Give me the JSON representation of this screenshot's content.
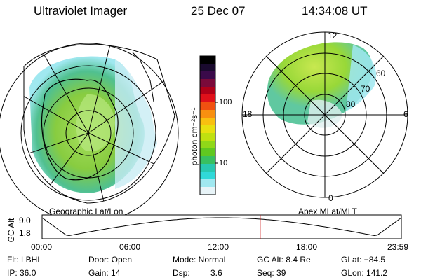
{
  "header": {
    "title": "Ultraviolet Imager",
    "date": "25 Dec 07",
    "time": "14:34:08 UT"
  },
  "left_panel": {
    "caption": "Geographic Lat/Lon"
  },
  "right_panel": {
    "caption": "Apex MLat/MLT",
    "mlt_labels": [
      "12",
      "18",
      "6",
      "0"
    ],
    "mlat_labels": [
      "60",
      "70",
      "80"
    ]
  },
  "colorbar": {
    "unit_label": "photon cm⁻²s⁻¹",
    "ticks": [
      "100",
      "10"
    ],
    "colors": [
      "#000000",
      "#1a0a2e",
      "#3a0a4a",
      "#7a0a3a",
      "#b00018",
      "#e0101a",
      "#f05010",
      "#f89010",
      "#f8c010",
      "#e8e010",
      "#c0e010",
      "#90d818",
      "#60c820",
      "#38c060",
      "#28c8b0",
      "#30d8d8",
      "#a0e8f0",
      "#e8f4f8"
    ]
  },
  "gc_alt_plot": {
    "y_label": "GC Alt",
    "y_ticks": [
      "9.0",
      "1.8"
    ],
    "x_ticks": [
      "00:00",
      "06:00",
      "12:00",
      "18:00",
      "23:59"
    ],
    "marker_hour": 14.57,
    "marker_color": "#cc0000"
  },
  "status": {
    "filter": "Flt: LBHL",
    "door": "Door: Open",
    "mode": "Mode: Normal",
    "gc_alt": "GC Alt: 8.4 Re",
    "glat": "GLat: −84.5",
    "ip": "IP: 36.0",
    "gain": "Gain: 14",
    "dsp_label": "Dsp:",
    "dsp_value": "3.6",
    "seq": "Seq: 39",
    "glon": "GLon: 141.2"
  }
}
